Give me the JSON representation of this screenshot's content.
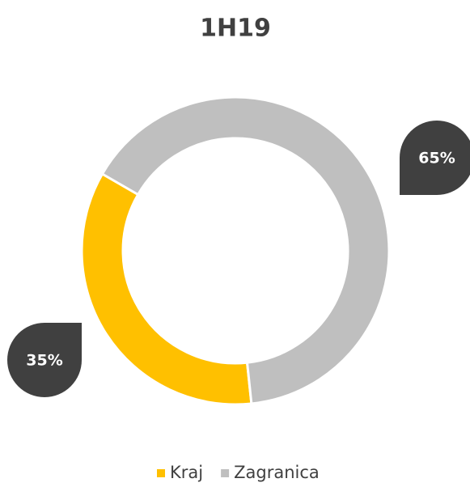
{
  "chart_data": {
    "type": "donut",
    "title": "1H19",
    "categories": [
      "Kraj",
      "Zagranica"
    ],
    "values": [
      35,
      65
    ],
    "value_labels": [
      "35%",
      "65%"
    ],
    "colors": [
      "#ffc000",
      "#bfbfbf"
    ],
    "legend": "bottom"
  }
}
